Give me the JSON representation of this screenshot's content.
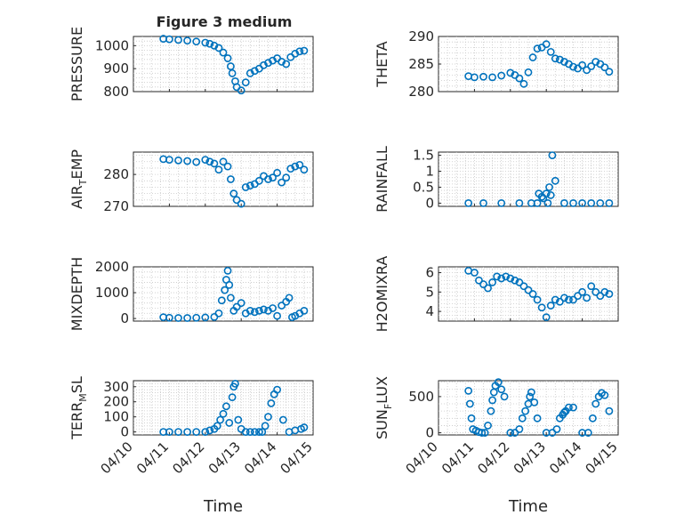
{
  "chart_data": [
    {
      "type": "scatter",
      "title": "Figure 3 medium",
      "ylabel": "PRESSURE",
      "ylim": [
        800,
        1040
      ],
      "yticks": [
        800,
        900,
        1000
      ],
      "xlim": [
        "04/10",
        "04/15"
      ],
      "xticks": [],
      "series": [
        {
          "x": [
            "04/10 20:00",
            "04/11 00:00",
            "04/11 06:00",
            "04/11 12:00",
            "04/11 18:00",
            "04/12 00:00",
            "04/12 03:00",
            "04/12 06:00",
            "04/12 09:00",
            "04/12 12:00",
            "04/12 15:00",
            "04/12 17:00",
            "04/12 18:00",
            "04/12 20:00",
            "04/12 21:00",
            "04/13 00:00",
            "04/13 03:00",
            "04/13 06:00",
            "04/13 09:00",
            "04/13 12:00",
            "04/13 15:00",
            "04/13 18:00",
            "04/13 21:00",
            "04/14 00:00",
            "04/14 03:00",
            "04/14 06:00",
            "04/14 09:00",
            "04/14 12:00",
            "04/14 15:00",
            "04/14 18:00"
          ],
          "y": [
            1030,
            1028,
            1025,
            1022,
            1018,
            1013,
            1008,
            1000,
            990,
            970,
            945,
            910,
            880,
            845,
            820,
            805,
            840,
            880,
            890,
            900,
            915,
            925,
            935,
            945,
            930,
            920,
            950,
            965,
            975,
            978
          ]
        }
      ]
    },
    {
      "type": "scatter",
      "title": "",
      "ylabel": "THETA",
      "ylim": [
        280,
        290
      ],
      "yticks": [
        280,
        285,
        290
      ],
      "xlim": [
        "04/10",
        "04/15"
      ],
      "xticks": [],
      "series": [
        {
          "x": [
            "04/10 20:00",
            "04/11 00:00",
            "04/11 06:00",
            "04/11 12:00",
            "04/11 18:00",
            "04/12 00:00",
            "04/12 03:00",
            "04/12 06:00",
            "04/12 09:00",
            "04/12 12:00",
            "04/12 15:00",
            "04/12 18:00",
            "04/12 21:00",
            "04/13 00:00",
            "04/13 03:00",
            "04/13 06:00",
            "04/13 09:00",
            "04/13 12:00",
            "04/13 15:00",
            "04/13 18:00",
            "04/13 21:00",
            "04/14 00:00",
            "04/14 03:00",
            "04/14 06:00",
            "04/14 09:00",
            "04/14 12:00",
            "04/14 15:00",
            "04/14 18:00"
          ],
          "y": [
            282.8,
            282.6,
            282.7,
            282.6,
            282.9,
            283.4,
            283.0,
            282.4,
            281.4,
            283.5,
            286.2,
            287.8,
            288.0,
            288.6,
            287.2,
            286.0,
            285.8,
            285.4,
            285.0,
            284.5,
            284.2,
            284.8,
            283.9,
            284.6,
            285.4,
            285.0,
            284.4,
            283.6
          ]
        }
      ]
    },
    {
      "type": "scatter",
      "title": "",
      "ylabel": "AIR_TEMP",
      "ylim": [
        270,
        287
      ],
      "yticks": [
        270,
        280
      ],
      "xlim": [
        "04/10",
        "04/15"
      ],
      "xticks": [],
      "series": [
        {
          "x": [
            "04/10 20:00",
            "04/11 00:00",
            "04/11 06:00",
            "04/11 12:00",
            "04/11 18:00",
            "04/12 00:00",
            "04/12 03:00",
            "04/12 06:00",
            "04/12 09:00",
            "04/12 12:00",
            "04/12 15:00",
            "04/12 17:00",
            "04/12 19:00",
            "04/12 21:00",
            "04/13 00:00",
            "04/13 03:00",
            "04/13 06:00",
            "04/13 09:00",
            "04/13 12:00",
            "04/13 15:00",
            "04/13 18:00",
            "04/13 21:00",
            "04/14 00:00",
            "04/14 03:00",
            "04/14 06:00",
            "04/14 09:00",
            "04/14 12:00",
            "04/14 15:00",
            "04/14 18:00"
          ],
          "y": [
            284.8,
            284.6,
            284.4,
            284.2,
            283.9,
            284.6,
            284.0,
            283.4,
            281.5,
            284.0,
            282.5,
            278.5,
            274.0,
            272.0,
            270.8,
            276.0,
            276.5,
            277.0,
            278.0,
            279.5,
            278.5,
            279.0,
            280.5,
            277.5,
            279.0,
            281.8,
            282.5,
            283.0,
            281.5
          ]
        }
      ]
    },
    {
      "type": "scatter",
      "title": "",
      "ylabel": "RAINFALL",
      "ylim": [
        -0.1,
        1.6
      ],
      "yticks": [
        0,
        0.5,
        1,
        1.5
      ],
      "ytick_labels": [
        "0",
        "0.5",
        "1",
        "1.5"
      ],
      "xlim": [
        "04/10",
        "04/15"
      ],
      "xticks": [],
      "series": [
        {
          "x": [
            "04/10 20:00",
            "04/11 06:00",
            "04/11 18:00",
            "04/12 06:00",
            "04/12 14:00",
            "04/12 18:00",
            "04/12 19:00",
            "04/12 21:00",
            "04/12 22:00",
            "04/13 00:00",
            "04/13 01:00",
            "04/13 02:00",
            "04/13 03:00",
            "04/13 04:00",
            "04/13 06:00",
            "04/13 12:00",
            "04/13 18:00",
            "04/14 00:00",
            "04/14 06:00",
            "04/14 12:00",
            "04/14 18:00"
          ],
          "y": [
            0,
            0,
            0,
            0,
            0,
            0,
            0.3,
            0.2,
            0.15,
            0.3,
            0.0,
            0.5,
            0.25,
            1.5,
            0.7,
            0,
            0,
            0,
            0,
            0,
            0
          ]
        }
      ]
    },
    {
      "type": "scatter",
      "title": "",
      "ylabel": "MIXDEPTH",
      "ylim": [
        -100,
        2000
      ],
      "yticks": [
        0,
        1000,
        2000
      ],
      "xlim": [
        "04/10",
        "04/15"
      ],
      "xticks": [],
      "series": [
        {
          "x": [
            "04/10 20:00",
            "04/11 00:00",
            "04/11 06:00",
            "04/11 12:00",
            "04/11 18:00",
            "04/12 00:00",
            "04/12 06:00",
            "04/12 09:00",
            "04/12 11:00",
            "04/12 13:00",
            "04/12 14:00",
            "04/12 15:00",
            "04/12 16:00",
            "04/12 17:00",
            "04/12 19:00",
            "04/12 21:00",
            "04/13 00:00",
            "04/13 03:00",
            "04/13 06:00",
            "04/13 09:00",
            "04/13 12:00",
            "04/13 15:00",
            "04/13 18:00",
            "04/13 21:00",
            "04/14 00:00",
            "04/14 03:00",
            "04/14 06:00",
            "04/14 08:00",
            "04/14 10:00",
            "04/14 12:00",
            "04/14 15:00",
            "04/14 18:00"
          ],
          "y": [
            50,
            30,
            20,
            20,
            30,
            40,
            60,
            200,
            700,
            1100,
            1500,
            1850,
            1300,
            800,
            300,
            450,
            600,
            200,
            300,
            250,
            300,
            350,
            300,
            400,
            100,
            500,
            650,
            800,
            50,
            100,
            200,
            300
          ]
        }
      ]
    },
    {
      "type": "scatter",
      "title": "",
      "ylabel": "H2OMIXRA",
      "ylim": [
        3.5,
        6.3
      ],
      "yticks": [
        4,
        5,
        6
      ],
      "xlim": [
        "04/10",
        "04/15"
      ],
      "xticks": [],
      "series": [
        {
          "x": [
            "04/10 20:00",
            "04/11 00:00",
            "04/11 03:00",
            "04/11 06:00",
            "04/11 09:00",
            "04/11 12:00",
            "04/11 15:00",
            "04/11 18:00",
            "04/11 21:00",
            "04/12 00:00",
            "04/12 03:00",
            "04/12 06:00",
            "04/12 09:00",
            "04/12 12:00",
            "04/12 15:00",
            "04/12 18:00",
            "04/12 21:00",
            "04/13 00:00",
            "04/13 03:00",
            "04/13 06:00",
            "04/13 09:00",
            "04/13 12:00",
            "04/13 15:00",
            "04/13 18:00",
            "04/13 21:00",
            "04/14 00:00",
            "04/14 03:00",
            "04/14 06:00",
            "04/14 09:00",
            "04/14 12:00",
            "04/14 15:00",
            "04/14 18:00"
          ],
          "y": [
            6.1,
            6.0,
            5.6,
            5.4,
            5.2,
            5.5,
            5.8,
            5.7,
            5.8,
            5.7,
            5.6,
            5.5,
            5.3,
            5.1,
            4.9,
            4.6,
            4.2,
            3.7,
            4.3,
            4.6,
            4.5,
            4.7,
            4.6,
            4.6,
            4.8,
            5.0,
            4.7,
            5.3,
            5.0,
            4.8,
            5.0,
            4.9
          ]
        }
      ]
    },
    {
      "type": "scatter",
      "title": "",
      "ylabel": "TERR_MSL",
      "ylim": [
        -20,
        340
      ],
      "yticks": [
        0,
        100,
        200,
        300
      ],
      "xlim": [
        "04/10",
        "04/15"
      ],
      "xticks": [
        "04/10",
        "04/11",
        "04/12",
        "04/13",
        "04/14",
        "04/15"
      ],
      "series": [
        {
          "x": [
            "04/10 20:00",
            "04/11 00:00",
            "04/11 06:00",
            "04/11 12:00",
            "04/11 18:00",
            "04/12 00:00",
            "04/12 03:00",
            "04/12 06:00",
            "04/12 08:00",
            "04/12 10:00",
            "04/12 12:00",
            "04/12 14:00",
            "04/12 16:00",
            "04/12 18:00",
            "04/12 19:00",
            "04/12 20:00",
            "04/12 22:00",
            "04/13 00:00",
            "04/13 03:00",
            "04/13 06:00",
            "04/13 09:00",
            "04/13 12:00",
            "04/13 14:00",
            "04/13 16:00",
            "04/13 18:00",
            "04/13 20:00",
            "04/13 22:00",
            "04/14 00:00",
            "04/14 04:00",
            "04/14 08:00",
            "04/14 12:00",
            "04/14 16:00",
            "04/14 18:00"
          ],
          "y": [
            0,
            0,
            0,
            0,
            0,
            0,
            10,
            20,
            40,
            80,
            120,
            170,
            60,
            230,
            300,
            320,
            80,
            20,
            0,
            0,
            0,
            0,
            0,
            40,
            100,
            190,
            250,
            280,
            80,
            0,
            10,
            20,
            30
          ]
        }
      ]
    },
    {
      "type": "scatter",
      "title": "",
      "ylabel": "SUN_FLUX",
      "ylim": [
        -30,
        720
      ],
      "yticks": [
        0,
        500
      ],
      "xlim": [
        "04/10",
        "04/15"
      ],
      "xticks": [
        "04/10",
        "04/11",
        "04/12",
        "04/13",
        "04/14",
        "04/15"
      ],
      "series": [
        {
          "x": [
            "04/10 20:00",
            "04/10 21:00",
            "04/10 22:00",
            "04/10 23:00",
            "04/11 01:00",
            "04/11 03:00",
            "04/11 05:00",
            "04/11 07:00",
            "04/11 09:00",
            "04/11 11:00",
            "04/11 12:00",
            "04/11 13:00",
            "04/11 14:00",
            "04/11 16:00",
            "04/11 18:00",
            "04/11 20:00",
            "04/12 00:00",
            "04/12 03:00",
            "04/12 06:00",
            "04/12 08:00",
            "04/12 10:00",
            "04/12 12:00",
            "04/12 13:00",
            "04/12 14:00",
            "04/12 16:00",
            "04/12 18:00",
            "04/13 00:00",
            "04/13 04:00",
            "04/13 07:00",
            "04/13 09:00",
            "04/13 11:00",
            "04/13 12:00",
            "04/13 13:00",
            "04/13 15:00",
            "04/13 18:00",
            "04/14 00:00",
            "04/14 04:00",
            "04/14 07:00",
            "04/14 09:00",
            "04/14 11:00",
            "04/14 13:00",
            "04/14 15:00",
            "04/14 18:00"
          ],
          "y": [
            580,
            400,
            200,
            50,
            30,
            10,
            0,
            0,
            100,
            300,
            450,
            560,
            650,
            700,
            600,
            500,
            0,
            0,
            50,
            200,
            300,
            400,
            500,
            560,
            420,
            200,
            0,
            0,
            50,
            200,
            250,
            280,
            300,
            350,
            350,
            0,
            0,
            200,
            400,
            500,
            550,
            520,
            300
          ]
        }
      ]
    }
  ],
  "xlabel": "Time",
  "colors": {
    "marker": "#0072bd",
    "axis": "#262626",
    "grid": "#c8c8c8"
  }
}
